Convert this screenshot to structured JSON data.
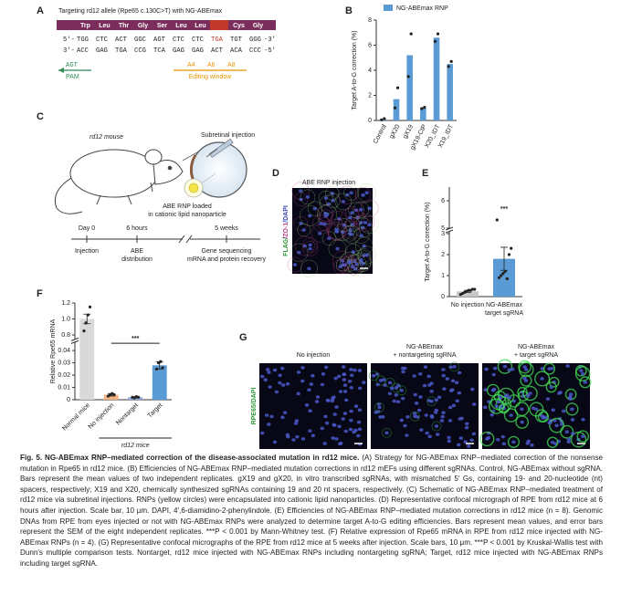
{
  "panel_a": {
    "letter": "A",
    "title": "Targeting rd12 allele (Rpe65 c.130C>T) with NG-ABEmax",
    "amino_acids": [
      "Trp",
      "Leu",
      "Thr",
      "Gly",
      "Ser",
      "Leu",
      "Leu",
      "Cys",
      "Gly"
    ],
    "top_prefix": "5′-",
    "top_codons": [
      "TGG",
      "CTC",
      "ACT",
      "GGC",
      "AGT",
      "CTC",
      "CTC",
      "TGA",
      "TGT",
      "GGG"
    ],
    "top_suffix": "-3′",
    "bottom_prefix": "3′-",
    "bottom_codons": [
      "ACC",
      "GAG",
      "TGA",
      "CCG",
      "TCA",
      "GAG",
      "GAG",
      "ACT",
      "ACA",
      "CCC"
    ],
    "bottom_suffix": "-5′",
    "pam_sequence": "AGT",
    "pam_label": "PAM",
    "edit_positions": [
      "A4",
      "A6",
      "A8"
    ],
    "editing_window": "Editing window"
  },
  "panel_c": {
    "letter": "C",
    "mouse": "rd12 mouse",
    "injection": "Subretinal injection",
    "nanoparticle": [
      "ABE RNP loaded",
      "in cationic lipid nanoparticle"
    ],
    "timeline_times": [
      "Day 0",
      "6 hours",
      "5 weeks"
    ],
    "timeline_events": [
      [
        "Injection"
      ],
      [
        "ABE",
        "distribution"
      ],
      [
        "Gene sequencing",
        "mRNA and protein recovery"
      ]
    ]
  },
  "panel_d": {
    "letter": "D",
    "title": "ABE RNP injection",
    "stain": [
      "FLAG",
      "/",
      "ZO-1",
      "/DAPI"
    ]
  },
  "panel_g": {
    "letter": "G",
    "stain": "RPE65/DAPI",
    "titles": [
      [
        "No injection"
      ],
      [
        "NG-ABEmax",
        "+ nontargeting sgRNA"
      ],
      [
        "NG-ABEmax",
        "+ target sgRNA"
      ]
    ]
  },
  "chart_data": [
    {
      "label": "B",
      "type": "bar",
      "ylabel": "Target A-to-G correction (%)",
      "categories": [
        "Control",
        "gX20",
        "gX19",
        "gX19-CtP",
        "X20_IDT",
        "X19_IDT"
      ],
      "series": [
        {
          "name": "NG-ABEmax RNP",
          "color": "#5b9bd5",
          "values": [
            0.1,
            1.7,
            5.2,
            1.0,
            6.6,
            4.5
          ]
        }
      ],
      "points": [
        [
          0.05,
          0.15
        ],
        [
          1.0,
          2.6
        ],
        [
          3.5,
          6.9
        ],
        [
          0.95,
          1.05
        ],
        [
          6.3,
          6.9
        ],
        [
          4.3,
          4.7
        ]
      ],
      "ylim": [
        0,
        8
      ],
      "yticks": [
        0,
        2,
        4,
        6,
        8
      ],
      "legend": "top"
    },
    {
      "label": "E",
      "type": "bar",
      "ylabel": "Target A-to-G correction (%)",
      "categories": [
        "No injection",
        "NG-ABEmax target sgRNA"
      ],
      "values": [
        0.25,
        1.8
      ],
      "errors": [
        0.05,
        0.55
      ],
      "colors": [
        "#c8c8c8",
        "#5b9bd5"
      ],
      "points": [
        [
          0.1,
          0.15,
          0.2,
          0.25,
          0.3,
          0.3,
          0.35,
          0.35
        ],
        [
          5.3,
          0.9,
          1.0,
          1.1,
          1.2,
          0.85,
          2.0,
          2.3
        ]
      ],
      "ylim": [
        0,
        6.5
      ],
      "axis_break": [
        3,
        5
      ],
      "yticks": [
        0,
        1,
        2,
        3,
        5,
        6
      ],
      "annotations": [
        "***"
      ]
    },
    {
      "label": "F",
      "type": "bar",
      "ylabel": "Relative Rpe65 mRNA",
      "categories": [
        "Normal mice",
        "No injection",
        "Nontarget",
        "Target"
      ],
      "values": [
        1.0,
        0.004,
        0.002,
        0.028
      ],
      "errors": [
        0.06,
        0.001,
        0.0005,
        0.003
      ],
      "colors": [
        "#d9d9d9",
        "#f4b183",
        "#8faadc",
        "#5b9bd5"
      ],
      "points": [
        [
          0.85,
          0.95,
          1.05,
          1.15
        ],
        [
          0.003,
          0.004,
          0.005,
          0.004
        ],
        [
          0.002,
          0.0015,
          0.0025,
          0.002
        ],
        [
          0.025,
          0.03,
          0.031,
          0.026
        ]
      ],
      "ylim": [
        0,
        1.2
      ],
      "axis_break": [
        0.045,
        0.75
      ],
      "yticks": [
        0,
        0.01,
        0.02,
        0.03,
        0.04,
        0.8,
        {
          "value": 1,
          "label": "1.0"
        },
        1.2
      ],
      "annotations": [
        "***"
      ],
      "group_label": "rd12 mice"
    }
  ],
  "caption": {
    "title": "Fig. 5. NG-ABEmax RNP–mediated correction of the disease-associated mutation in rd12 mice.",
    "text": " (A) Strategy for NG-ABEmax RNP–mediated correction of the nonsense mutation in Rpe65 in rd12 mice. (B) Efficiencies of NG-ABEmax RNP–mediated mutation corrections in rd12 mEFs using different sgRNAs. Control, NG-ABEmax without sgRNA. Bars represent the mean values of two independent replicates. gX19 and gX20, in vitro transcribed sgRNAs, with mismatched 5′ Gs, containing 19- and 20-nucleotide (nt) spacers, respectively; X19 and X20, chemically synthesized sgRNAs containing 19 and 20 nt spacers, respectively. (C) Schematic of NG-ABEmax RNP–mediated treatment of rd12 mice via subretinal injections. RNPs (yellow circles) were encapsulated into cationic lipid nanoparticles. (D) Representative confocal micrograph of RPE from rd12 mice at 6 hours after injection. Scale bar, 10 μm. DAPI, 4′,6-diamidino-2-phenylindole. (E) Efficiencies of NG-ABEmax RNP–mediated mutation corrections in rd12 mice (n = 8). Genomic DNAs from RPE from eyes injected or not with NG-ABEmax RNPs were analyzed to determine target A-to-G editing efficiencies. Bars represent mean values, and error bars represent the SEM of the eight independent replicates. ***P < 0.001 by Mann-Whitney test. (F) Relative expression of Rpe65 mRNA in RPE from rd12 mice injected with NG-ABEmax RNPs (n = 4). (G) Representative confocal micrographs of the RPE from rd12 mice at 5 weeks after injection. Scale bars, 10 μm. ***P < 0.001 by Kruskal-Wallis test with Dunn's multiple comparison tests. Nontarget, rd12 mice injected with NG-ABEmax RNPs including nontargeting sgRNA; Target, rd12 mice injected with NG-ABEmax RNPs including target sgRNA."
  }
}
